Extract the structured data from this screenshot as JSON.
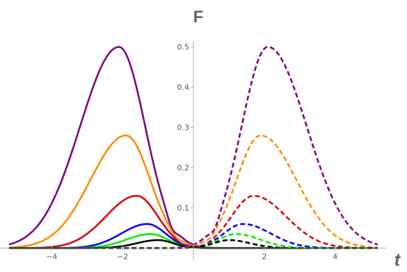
{
  "chart_data": {
    "type": "line",
    "ylabel": "F",
    "xlabel": "t",
    "xlim": [
      -5.3,
      5.3
    ],
    "ylim": [
      -0.03,
      0.52
    ],
    "x_ticks": [
      -4,
      -2,
      2,
      4
    ],
    "x_tick_labels": [
      "−4",
      "−2",
      "2",
      "4"
    ],
    "y_ticks": [
      0.1,
      0.2,
      0.3,
      0.4,
      0.5
    ],
    "y_tick_labels": [
      "0.1",
      "0.2",
      "0.3",
      "0.4",
      "0.5"
    ],
    "grid": false,
    "series": [
      {
        "color": "#800080",
        "style": "solid",
        "peak_x": -2.1,
        "peak": 0.5,
        "dip_x": -0.6,
        "dip": -0.015
      },
      {
        "color": "#ff8c00",
        "style": "solid",
        "peak_x": -1.9,
        "peak": 0.28,
        "dip_x": -0.5,
        "dip": -0.006
      },
      {
        "color": "#e00000",
        "style": "solid",
        "peak_x": -1.6,
        "peak": 0.13,
        "dip_x": -0.35,
        "dip": -0.003
      },
      {
        "color": "#0000ff",
        "style": "solid",
        "peak_x": -1.3,
        "peak": 0.06
      },
      {
        "color": "#00ee00",
        "style": "solid",
        "peak_x": -1.2,
        "peak": 0.035
      },
      {
        "color": "#000000",
        "style": "solid",
        "peak_x": -1.0,
        "peak": 0.02
      },
      {
        "color": "#800080",
        "style": "dashed",
        "peak_x": 2.1,
        "peak": 0.5,
        "dip_x": 0.6,
        "dip": -0.015
      },
      {
        "color": "#ff8c00",
        "style": "dashed",
        "peak_x": 1.9,
        "peak": 0.28,
        "dip_x": 0.5,
        "dip": -0.006
      },
      {
        "color": "#e00000",
        "style": "dashed",
        "peak_x": 1.7,
        "peak": 0.13,
        "dip_x": 0.35,
        "dip": -0.003
      },
      {
        "color": "#0000ff",
        "style": "dashed",
        "peak_x": 1.4,
        "peak": 0.06
      },
      {
        "color": "#00ee00",
        "style": "dashed",
        "peak_x": 1.2,
        "peak": 0.035
      },
      {
        "color": "#000000",
        "style": "dashed",
        "peak_x": 1.0,
        "peak": 0.02
      }
    ]
  }
}
